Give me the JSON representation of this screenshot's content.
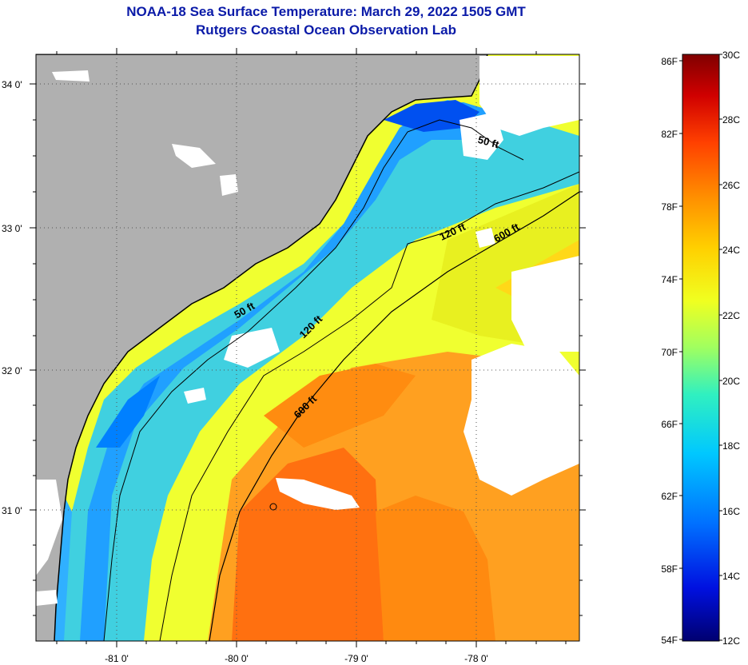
{
  "title": {
    "line1": "NOAA-18 Sea Surface Temperature:  March 29, 2022 1505 GMT",
    "line2": "Rutgers Coastal Ocean Observation Lab"
  },
  "map": {
    "lon_labels": [
      "-81 0'",
      "-80 0'",
      "-79 0'",
      "-78 0'"
    ],
    "lat_labels": [
      "34 0'",
      "33 0'",
      "32 0'",
      "31 0'"
    ],
    "contours": [
      "50 ft",
      "50 ft",
      "120 ft",
      "120 ft",
      "600 ft",
      "600 ft"
    ],
    "colors": {
      "land": "#b0b0b0",
      "cloud": "#ffffff",
      "coast": "#000000"
    }
  },
  "colorbar": {
    "fahrenheit": [
      "86F",
      "82F",
      "78F",
      "74F",
      "70F",
      "66F",
      "62F",
      "58F",
      "54F"
    ],
    "celsius": [
      "30C",
      "28C",
      "26C",
      "24C",
      "22C",
      "20C",
      "18C",
      "16C",
      "14C",
      "12C"
    ],
    "stops": [
      "#800000",
      "#d00000",
      "#ff4000",
      "#ff8c00",
      "#ffd000",
      "#f0ff20",
      "#a0ff60",
      "#30f0c0",
      "#00c8ff",
      "#0070ff",
      "#0010e0",
      "#000070"
    ]
  }
}
